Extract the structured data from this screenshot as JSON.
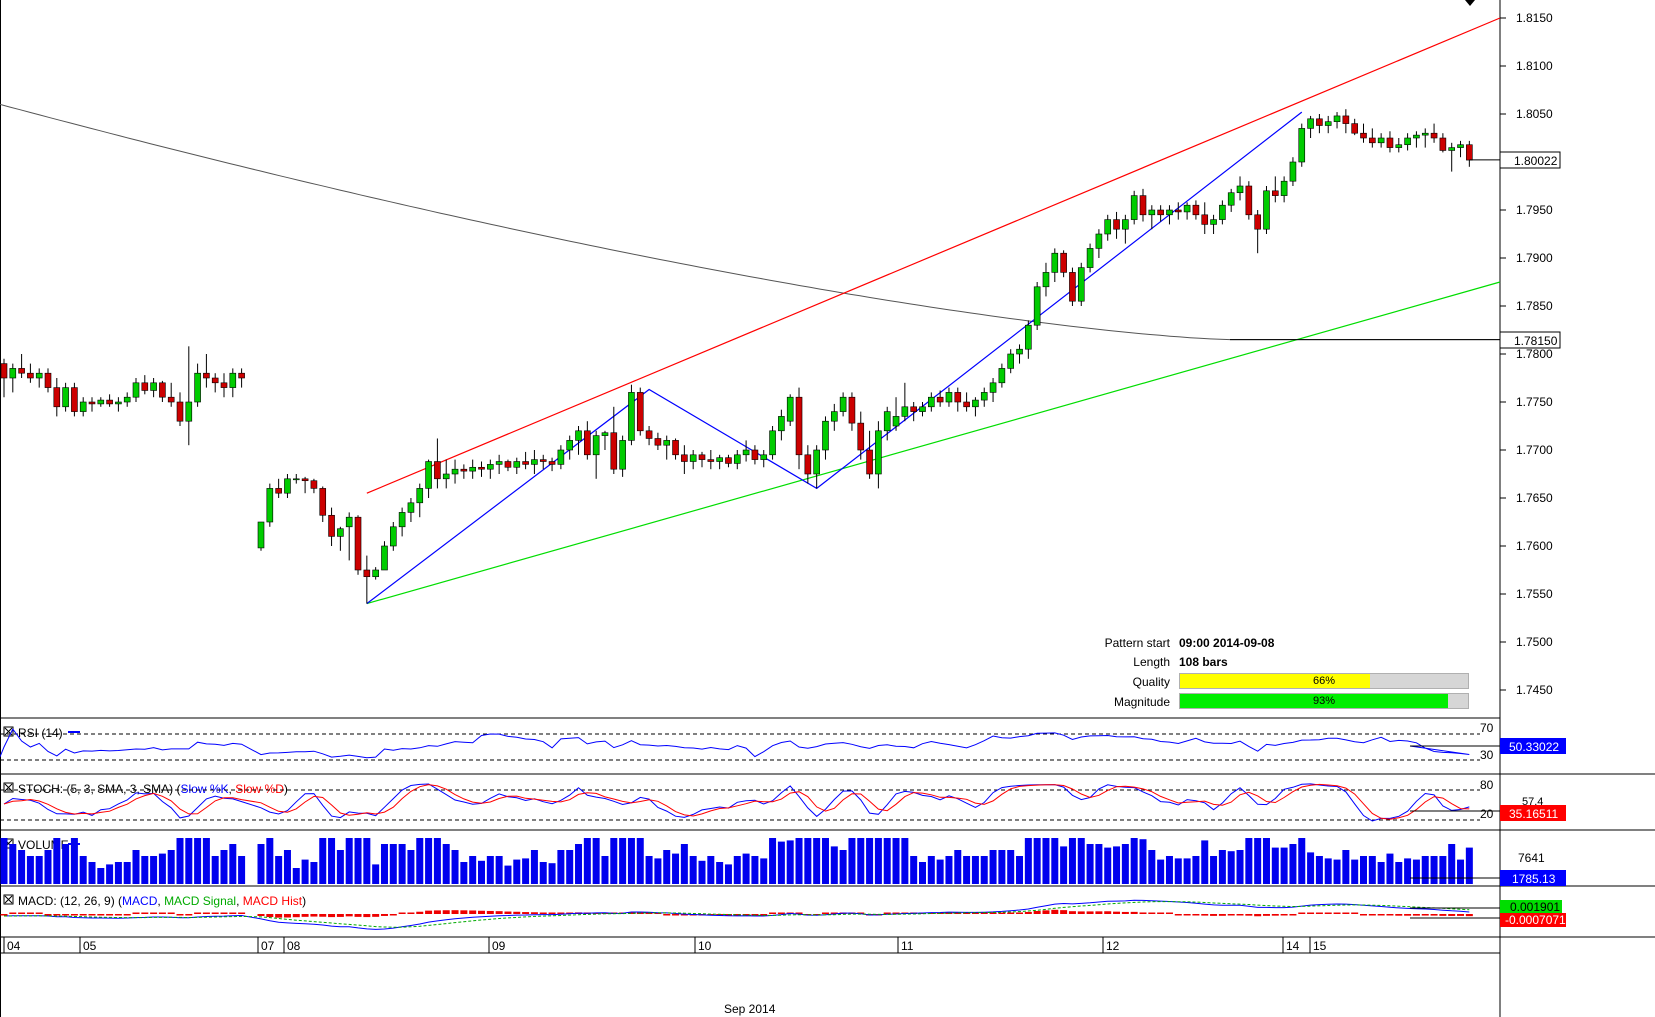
{
  "chart_data": {
    "type": "candlestick",
    "instrument_price_axis": {
      "ticks": [
        "1.8150",
        "1.8100",
        "1.8050",
        "1.7950",
        "1.7900",
        "1.7850",
        "1.7800",
        "1.7750",
        "1.7700",
        "1.7650",
        "1.7600",
        "1.7550",
        "1.7500",
        "1.7450"
      ],
      "ylim": [
        1.742,
        1.817
      ],
      "last_price": "1.80022",
      "ma_price": "1.78150"
    },
    "x_axis": {
      "day_labels": [
        "04",
        "05",
        "07",
        "08",
        "09",
        "10",
        "11",
        "12",
        "14",
        "15"
      ],
      "month_label": "Sep 2014"
    },
    "candles": [
      [
        1.779,
        1.7795,
        1.7755,
        1.7775
      ],
      [
        1.7775,
        1.779,
        1.776,
        1.7785
      ],
      [
        1.7785,
        1.78,
        1.7775,
        1.778
      ],
      [
        1.778,
        1.779,
        1.777,
        1.7775
      ],
      [
        1.7775,
        1.7785,
        1.7765,
        1.778
      ],
      [
        1.778,
        1.7785,
        1.776,
        1.7765
      ],
      [
        1.7765,
        1.7775,
        1.7735,
        1.7745
      ],
      [
        1.7745,
        1.777,
        1.774,
        1.7765
      ],
      [
        1.7765,
        1.777,
        1.7735,
        1.774
      ],
      [
        1.774,
        1.7755,
        1.7735,
        1.775
      ],
      [
        1.775,
        1.7755,
        1.774,
        1.7748
      ],
      [
        1.7748,
        1.7755,
        1.7745,
        1.7752
      ],
      [
        1.7752,
        1.7758,
        1.7745,
        1.7748
      ],
      [
        1.7748,
        1.7755,
        1.774,
        1.775
      ],
      [
        1.775,
        1.776,
        1.7745,
        1.7755
      ],
      [
        1.7755,
        1.7775,
        1.775,
        1.777
      ],
      [
        1.777,
        1.7778,
        1.7758,
        1.7762
      ],
      [
        1.7762,
        1.7775,
        1.7755,
        1.777
      ],
      [
        1.777,
        1.7772,
        1.775,
        1.7755
      ],
      [
        1.7755,
        1.777,
        1.7745,
        1.775
      ],
      [
        1.775,
        1.776,
        1.7725,
        1.773
      ],
      [
        1.773,
        1.7808,
        1.7705,
        1.775
      ],
      [
        1.775,
        1.779,
        1.7745,
        1.778
      ],
      [
        1.778,
        1.78,
        1.7765,
        1.7775
      ],
      [
        1.7775,
        1.778,
        1.776,
        1.777
      ],
      [
        1.777,
        1.778,
        1.7755,
        1.7765
      ],
      [
        1.7765,
        1.7785,
        1.7755,
        1.778
      ],
      [
        1.778,
        1.7785,
        1.7765,
        1.7775
      ],
      [
        1.7598,
        1.7625,
        1.7595,
        1.7625
      ],
      [
        1.7625,
        1.7665,
        1.762,
        1.766
      ],
      [
        1.766,
        1.767,
        1.765,
        1.7655
      ],
      [
        1.7655,
        1.7675,
        1.765,
        1.767
      ],
      [
        1.767,
        1.7675,
        1.7665,
        1.767
      ],
      [
        1.767,
        1.7672,
        1.7655,
        1.7668
      ],
      [
        1.7668,
        1.767,
        1.7655,
        1.766
      ],
      [
        1.766,
        1.7662,
        1.7625,
        1.7632
      ],
      [
        1.7632,
        1.764,
        1.76,
        1.761
      ],
      [
        1.761,
        1.762,
        1.7595,
        1.7618
      ],
      [
        1.762,
        1.7635,
        1.7585,
        1.763
      ],
      [
        1.763,
        1.7632,
        1.757,
        1.7575
      ],
      [
        1.7575,
        1.759,
        1.754,
        1.7568
      ],
      [
        1.7568,
        1.7578,
        1.7565,
        1.7575
      ],
      [
        1.7575,
        1.7605,
        1.7575,
        1.76
      ],
      [
        1.76,
        1.7625,
        1.7595,
        1.762
      ],
      [
        1.762,
        1.764,
        1.761,
        1.7635
      ],
      [
        1.7635,
        1.765,
        1.7625,
        1.7645
      ],
      [
        1.7645,
        1.7665,
        1.763,
        1.766
      ],
      [
        1.766,
        1.769,
        1.765,
        1.7688
      ],
      [
        1.7688,
        1.7712,
        1.766,
        1.767
      ],
      [
        1.767,
        1.769,
        1.766,
        1.7675
      ],
      [
        1.7675,
        1.769,
        1.7665,
        1.768
      ],
      [
        1.768,
        1.7685,
        1.767,
        1.7678
      ],
      [
        1.7678,
        1.769,
        1.767,
        1.7682
      ],
      [
        1.7682,
        1.7688,
        1.7672,
        1.768
      ],
      [
        1.768,
        1.769,
        1.767,
        1.7685
      ],
      [
        1.7685,
        1.7695,
        1.7675,
        1.7688
      ],
      [
        1.7688,
        1.769,
        1.7678,
        1.7682
      ],
      [
        1.7682,
        1.7692,
        1.7675,
        1.7688
      ],
      [
        1.7688,
        1.7698,
        1.768,
        1.7685
      ],
      [
        1.7685,
        1.77,
        1.7675,
        1.769
      ],
      [
        1.769,
        1.7695,
        1.768,
        1.7688
      ],
      [
        1.7688,
        1.7692,
        1.7678,
        1.7685
      ],
      [
        1.7685,
        1.7705,
        1.768,
        1.77
      ],
      [
        1.77,
        1.7715,
        1.769,
        1.771
      ],
      [
        1.771,
        1.7725,
        1.7695,
        1.772
      ],
      [
        1.772,
        1.773,
        1.769,
        1.7695
      ],
      [
        1.7695,
        1.772,
        1.767,
        1.7715
      ],
      [
        1.7715,
        1.772,
        1.77,
        1.7718
      ],
      [
        1.7718,
        1.7745,
        1.7675,
        1.768
      ],
      [
        1.768,
        1.7715,
        1.7672,
        1.771
      ],
      [
        1.771,
        1.7768,
        1.7705,
        1.776
      ],
      [
        1.776,
        1.7765,
        1.7715,
        1.772
      ],
      [
        1.772,
        1.7725,
        1.7705,
        1.7712
      ],
      [
        1.7712,
        1.7718,
        1.77,
        1.7705
      ],
      [
        1.7705,
        1.7715,
        1.769,
        1.771
      ],
      [
        1.771,
        1.7712,
        1.769,
        1.7695
      ],
      [
        1.7695,
        1.7705,
        1.7675,
        1.7688
      ],
      [
        1.7688,
        1.77,
        1.768,
        1.7695
      ],
      [
        1.7695,
        1.7698,
        1.7682,
        1.769
      ],
      [
        1.769,
        1.77,
        1.768,
        1.7688
      ],
      [
        1.7688,
        1.7695,
        1.768,
        1.7692
      ],
      [
        1.7692,
        1.7695,
        1.7682,
        1.7686
      ],
      [
        1.7686,
        1.77,
        1.768,
        1.7695
      ],
      [
        1.7695,
        1.771,
        1.7688,
        1.77
      ],
      [
        1.77,
        1.7705,
        1.7685,
        1.769
      ],
      [
        1.769,
        1.77,
        1.7682,
        1.7695
      ],
      [
        1.7695,
        1.7725,
        1.769,
        1.772
      ],
      [
        1.772,
        1.7742,
        1.771,
        1.7735
      ],
      [
        1.773,
        1.7758,
        1.7725,
        1.7755
      ],
      [
        1.7755,
        1.7765,
        1.768,
        1.7695
      ],
      [
        1.7695,
        1.7705,
        1.7665,
        1.7675
      ],
      [
        1.7675,
        1.7705,
        1.766,
        1.77
      ],
      [
        1.77,
        1.7735,
        1.769,
        1.773
      ],
      [
        1.773,
        1.7748,
        1.772,
        1.774
      ],
      [
        1.774,
        1.776,
        1.7735,
        1.7755
      ],
      [
        1.7755,
        1.776,
        1.772,
        1.7728
      ],
      [
        1.7728,
        1.774,
        1.769,
        1.77
      ],
      [
        1.77,
        1.772,
        1.767,
        1.7675
      ],
      [
        1.7675,
        1.773,
        1.766,
        1.772
      ],
      [
        1.772,
        1.7745,
        1.771,
        1.774
      ],
      [
        1.7725,
        1.7755,
        1.772,
        1.7735
      ],
      [
        1.7735,
        1.777,
        1.773,
        1.7745
      ],
      [
        1.7745,
        1.775,
        1.773,
        1.774
      ],
      [
        1.774,
        1.775,
        1.7735,
        1.7745
      ],
      [
        1.7745,
        1.776,
        1.774,
        1.7755
      ],
      [
        1.7755,
        1.7762,
        1.7745,
        1.775
      ],
      [
        1.775,
        1.7765,
        1.7745,
        1.776
      ],
      [
        1.776,
        1.7765,
        1.774,
        1.775
      ],
      [
        1.775,
        1.776,
        1.774,
        1.7745
      ],
      [
        1.7745,
        1.7755,
        1.7735,
        1.7752
      ],
      [
        1.7752,
        1.7765,
        1.7745,
        1.776
      ],
      [
        1.776,
        1.7775,
        1.775,
        1.777
      ],
      [
        1.777,
        1.779,
        1.7765,
        1.7785
      ],
      [
        1.7785,
        1.7805,
        1.778,
        1.78
      ],
      [
        1.78,
        1.781,
        1.779,
        1.7805
      ],
      [
        1.7805,
        1.7835,
        1.7795,
        1.783
      ],
      [
        1.783,
        1.7875,
        1.7825,
        1.787
      ],
      [
        1.787,
        1.7895,
        1.786,
        1.7885
      ],
      [
        1.7885,
        1.791,
        1.7875,
        1.7905
      ],
      [
        1.7905,
        1.7908,
        1.788,
        1.7885
      ],
      [
        1.7885,
        1.789,
        1.785,
        1.7855
      ],
      [
        1.7855,
        1.7895,
        1.785,
        1.789
      ],
      [
        1.789,
        1.7915,
        1.7885,
        1.791
      ],
      [
        1.791,
        1.793,
        1.79,
        1.7925
      ],
      [
        1.7925,
        1.7945,
        1.7918,
        1.794
      ],
      [
        1.794,
        1.7948,
        1.792,
        1.793
      ],
      [
        1.793,
        1.7945,
        1.7915,
        1.794
      ],
      [
        1.794,
        1.797,
        1.7935,
        1.7965
      ],
      [
        1.7965,
        1.7972,
        1.7938,
        1.7945
      ],
      [
        1.7945,
        1.7955,
        1.793,
        1.795
      ],
      [
        1.795,
        1.7955,
        1.7938,
        1.7945
      ],
      [
        1.7945,
        1.7955,
        1.7935,
        1.795
      ],
      [
        1.795,
        1.7958,
        1.794,
        1.7948
      ],
      [
        1.7948,
        1.7958,
        1.794,
        1.7955
      ],
      [
        1.7955,
        1.796,
        1.794,
        1.7945
      ],
      [
        1.7945,
        1.7958,
        1.7925,
        1.7935
      ],
      [
        1.7935,
        1.7945,
        1.7925,
        1.794
      ],
      [
        1.794,
        1.796,
        1.7935,
        1.7955
      ],
      [
        1.7955,
        1.7972,
        1.7948,
        1.7968
      ],
      [
        1.7968,
        1.7985,
        1.796,
        1.7975
      ],
      [
        1.7975,
        1.798,
        1.794,
        1.7945
      ],
      [
        1.7945,
        1.795,
        1.7905,
        1.793
      ],
      [
        1.793,
        1.7975,
        1.7925,
        1.797
      ],
      [
        1.797,
        1.7985,
        1.7958,
        1.7965
      ],
      [
        1.7965,
        1.7985,
        1.7958,
        1.798
      ],
      [
        1.798,
        1.8005,
        1.7975,
        1.8
      ],
      [
        1.8,
        1.804,
        1.7995,
        1.8035
      ],
      [
        1.8035,
        1.8048,
        1.8025,
        1.8045
      ],
      [
        1.8045,
        1.805,
        1.803,
        1.8038
      ],
      [
        1.8038,
        1.8048,
        1.803,
        1.8042
      ],
      [
        1.8042,
        1.8052,
        1.8035,
        1.8048
      ],
      [
        1.8048,
        1.8055,
        1.803,
        1.804
      ],
      [
        1.804,
        1.8045,
        1.8028,
        1.803
      ],
      [
        1.803,
        1.804,
        1.802,
        1.8025
      ],
      [
        1.8025,
        1.8035,
        1.8015,
        1.802
      ],
      [
        1.802,
        1.803,
        1.8015,
        1.8025
      ],
      [
        1.8025,
        1.8032,
        1.801,
        1.8015
      ],
      [
        1.8015,
        1.8025,
        1.801,
        1.8018
      ],
      [
        1.8018,
        1.803,
        1.8012,
        1.8025
      ],
      [
        1.8025,
        1.8032,
        1.8015,
        1.8028
      ],
      [
        1.8028,
        1.8035,
        1.8015,
        1.803
      ],
      [
        1.803,
        1.804,
        1.802,
        1.8025
      ],
      [
        1.8025,
        1.803,
        1.801,
        1.8012
      ],
      [
        1.8012,
        1.802,
        1.799,
        1.8015
      ],
      [
        1.8015,
        1.8022,
        1.8005,
        1.8018
      ],
      [
        1.8018,
        1.8022,
        1.7995,
        1.8002
      ]
    ],
    "pattern": {
      "start_label": "Pattern start",
      "start_value": "09:00 2014-09-08",
      "length_label": "Length",
      "length_value": "108 bars",
      "quality_label": "Quality",
      "quality_value": "66%",
      "quality_fraction": 0.66,
      "magnitude_label": "Magnitude",
      "magnitude_value": "93%",
      "magnitude_fraction": 0.93
    },
    "panels": {
      "rsi": {
        "title": "RSI (14)",
        "levels": [
          "70",
          "30"
        ],
        "value": "50.33022"
      },
      "stoch": {
        "title_prefix": "STOCH: (5, 3, SMA, 3, SMA)",
        "k_label": "Slow %K",
        "d_label": "Slow %D",
        "levels": [
          "80",
          "20"
        ],
        "value_k": "57.4",
        "value_d": "35.16511"
      },
      "volume": {
        "title": "VOLUME",
        "tick": "7641",
        "value": "1785.13"
      },
      "macd": {
        "title_prefix": "MACD: (12, 26, 9)",
        "macd_label": "MACD",
        "signal_label": "MACD Signal",
        "hist_label": "MACD Hist",
        "value_macd": "0.001901",
        "value_hist": "-0.0007071"
      }
    },
    "colors": {
      "up": "#00cc00",
      "down": "#cc0000",
      "resistance": "#ff0000",
      "support": "#00dd00",
      "zigzag": "#0000ff",
      "ma": "#555555",
      "quality": "#ffff00",
      "magnitude": "#00ee00"
    }
  }
}
